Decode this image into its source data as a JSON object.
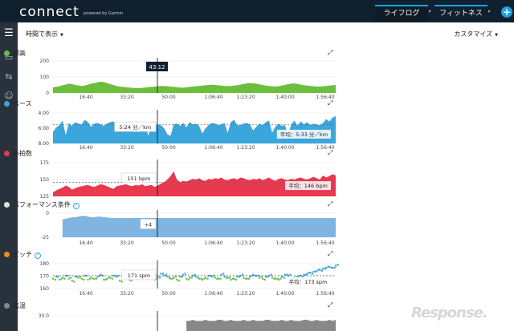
{
  "app": {
    "logo": "connect",
    "powered_by": "powered by Garmin"
  },
  "tabs": [
    {
      "label": "ライフログ",
      "active": true
    },
    {
      "label": "フィットネス",
      "active": false
    }
  ],
  "add_button": "+",
  "toolbar": {
    "view_toggle": "時間で表示",
    "customize": "カスタマイズ"
  },
  "charts": [
    {
      "name": "標高",
      "color": "#6cbf3c",
      "help": false,
      "yticks": [
        "200",
        "100",
        "0"
      ],
      "xticks": [
        "16:40",
        "33:20",
        "50:00",
        "1:06:40",
        "1:23:20",
        "1:40:00",
        "1:56:40"
      ],
      "tooltip": "43:12",
      "avg": ""
    },
    {
      "name": "ペース",
      "color": "#3aa6dc",
      "help": false,
      "yticks": [
        "4:00",
        "6:00",
        "8:00"
      ],
      "xticks": [
        "16:40",
        "33:20",
        "50:00",
        "1:06:40",
        "1:23:20",
        "1:40:00",
        "1:56:40"
      ],
      "tooltip": "5:24 分／km",
      "avg": "平均：5:33 分／km"
    },
    {
      "name": "心拍数",
      "color": "#e8394f",
      "help": false,
      "yticks": [
        "175",
        "150",
        "125"
      ],
      "xticks": [],
      "tooltip": "151 bpm",
      "avg": "平均：146 bpm"
    },
    {
      "name": "パフォーマンス条件",
      "color": "#e0e0e0",
      "help": true,
      "yticks": [
        "0",
        "-25"
      ],
      "xticks": [
        "16:40",
        "33:20",
        "50:00",
        "1:06:40",
        "1:23:20",
        "1:40:00",
        "1:56:40"
      ],
      "tooltip": "+4",
      "avg": ""
    },
    {
      "name": "ピッチ",
      "color": "#f08a24",
      "help": true,
      "yticks": [
        "180",
        "170",
        "160"
      ],
      "xticks": [
        "16:40",
        "33:20",
        "50:00",
        "1:06:40",
        "1:23:20",
        "1:40:00",
        "1:56:40"
      ],
      "tooltip": "171 spm",
      "avg": "平均：173 spm"
    },
    {
      "name": "気温",
      "color": "#888888",
      "help": false,
      "yticks": [
        "30.0"
      ],
      "xticks": [],
      "tooltip": "",
      "avg": ""
    }
  ],
  "chart_data": [
    {
      "type": "area",
      "title": "標高",
      "ylim": [
        0,
        200
      ],
      "values": [
        35,
        38,
        42,
        48,
        52,
        58,
        55,
        50,
        47,
        44,
        46,
        52,
        58,
        62,
        66,
        70,
        68,
        62,
        55,
        50,
        44,
        40,
        38,
        36,
        34,
        32,
        30,
        30,
        32,
        34,
        36,
        38,
        40,
        42,
        44,
        43,
        42,
        40,
        38,
        36,
        34,
        33,
        35,
        38,
        40,
        42,
        44,
        46,
        48,
        50,
        52,
        50,
        48,
        46,
        44,
        43,
        44,
        46,
        48,
        52,
        56,
        60,
        62,
        60,
        58,
        54,
        50,
        46,
        44,
        42,
        40,
        42,
        46,
        50,
        55,
        58,
        60,
        56,
        52,
        48,
        46,
        44,
        42,
        40,
        40,
        42,
        44,
        46,
        48,
        50
      ]
    },
    {
      "type": "area",
      "title": "ペース",
      "ylim": [
        4.0,
        8.0
      ],
      "avg": 5.55,
      "values": [
        6.5,
        5.9,
        5.6,
        5.0,
        6.9,
        5.3,
        5.7,
        5.2,
        5.4,
        5.5,
        4.9,
        5.2,
        5.8,
        5.4,
        5.3,
        5.5,
        5.7,
        5.4,
        5.2,
        5.1,
        5.6,
        5.3,
        5.5,
        6.0,
        5.4,
        5.3,
        5.6,
        5.3,
        5.2,
        5.5,
        7.0,
        5.4,
        5.8,
        5.5,
        5.6,
        6.0,
        6.8,
        7.0,
        5.5,
        5.4,
        5.7,
        5.3,
        5.9,
        5.2,
        5.5,
        5.4,
        5.7,
        6.7,
        6.0,
        5.6,
        5.3,
        5.4,
        5.6,
        5.5,
        5.3,
        6.6,
        5.2,
        4.9,
        5.6,
        5.6,
        5.4,
        5.3,
        5.5,
        6.3,
        5.8,
        5.4,
        5.6,
        5.2,
        5.0,
        6.6,
        5.8,
        5.4,
        5.7,
        5.6,
        6.8,
        5.5,
        5.0,
        5.7,
        5.1,
        5.5,
        5.2,
        5.6,
        5.4,
        5.5,
        5.6,
        5.3,
        4.8,
        5.1,
        4.6,
        4.4
      ]
    },
    {
      "type": "area",
      "title": "心拍数",
      "ylim": [
        125,
        175
      ],
      "avg": 146,
      "values": [
        131,
        134,
        136,
        138,
        141,
        139,
        135,
        137,
        139,
        140,
        141,
        142,
        140,
        139,
        141,
        143,
        142,
        140,
        138,
        136,
        140,
        141,
        142,
        143,
        141,
        140,
        142,
        141,
        143,
        140,
        141,
        142,
        139,
        141,
        144,
        146,
        150,
        155,
        162,
        150,
        146,
        148,
        147,
        149,
        151,
        150,
        152,
        149,
        148,
        151,
        150,
        152,
        151,
        153,
        150,
        149,
        151,
        152,
        150,
        153,
        152,
        150,
        149,
        151,
        150,
        152,
        149,
        151,
        153,
        150,
        148,
        151,
        152,
        150,
        149,
        151,
        150,
        152,
        153,
        151,
        150,
        152,
        154,
        152,
        150,
        156,
        153,
        155,
        158,
        156
      ]
    },
    {
      "type": "area",
      "title": "パフォーマンス条件",
      "ylim": [
        -25,
        10
      ],
      "values": [
        null,
        null,
        null,
        1,
        2,
        3,
        4,
        4,
        5,
        6,
        6,
        5,
        4,
        4,
        5,
        5,
        4,
        4,
        3,
        3,
        3,
        3,
        3,
        3,
        3,
        3,
        3,
        3,
        3,
        3,
        3,
        3,
        3,
        3,
        3,
        3,
        3,
        3,
        3,
        3,
        3,
        3,
        3,
        3,
        3,
        3,
        3,
        3,
        3,
        3,
        3,
        3,
        3,
        3,
        3,
        3,
        3,
        3,
        3,
        3,
        3,
        3,
        3,
        3,
        3,
        3,
        3,
        3,
        3,
        3,
        3,
        3,
        3,
        3,
        3,
        3,
        3,
        3,
        3,
        3,
        3,
        3,
        3,
        3,
        3,
        3,
        3,
        3,
        3,
        3
      ]
    },
    {
      "type": "scatter",
      "title": "ピッチ",
      "ylim": [
        160,
        185
      ],
      "avg": 173,
      "values": [
        170,
        172,
        169,
        171,
        173,
        170,
        168,
        172,
        171,
        170,
        173,
        169,
        171,
        170,
        172,
        174,
        169,
        170,
        171,
        173,
        172,
        168,
        170,
        171,
        169,
        172,
        170,
        171,
        173,
        174,
        171,
        170,
        169,
        172,
        175,
        173,
        172,
        170,
        171,
        169,
        172,
        174,
        170,
        171,
        173,
        172,
        170,
        169,
        171,
        173,
        172,
        171,
        170,
        174,
        172,
        171,
        169,
        170,
        172,
        173,
        171,
        170,
        172,
        174,
        173,
        171,
        170,
        172,
        173,
        171,
        170,
        169,
        172,
        174,
        173,
        170,
        171,
        172,
        173,
        174,
        175,
        176,
        177,
        178,
        179,
        180,
        181,
        182,
        181,
        183
      ]
    },
    {
      "type": "area",
      "title": "気温",
      "ylim": [
        20,
        35
      ],
      "values": [
        null,
        null,
        null,
        null,
        null,
        null,
        null,
        null,
        null,
        null,
        null,
        null,
        null,
        null,
        null,
        null,
        null,
        null,
        null,
        null,
        null,
        null,
        null,
        null,
        null,
        null,
        null,
        null,
        null,
        null,
        null,
        null,
        null,
        null,
        null,
        null,
        null,
        null,
        null,
        null,
        null,
        null,
        29,
        29,
        30,
        29,
        29,
        29,
        30,
        29,
        29,
        29,
        30,
        30,
        29,
        29,
        30,
        29,
        29,
        29,
        30,
        29,
        29,
        30,
        29,
        29,
        29,
        30,
        30,
        29,
        29,
        29,
        30,
        29,
        29,
        30,
        29,
        29,
        29,
        30,
        30,
        29,
        29,
        30,
        29,
        29,
        29,
        30,
        29,
        30
      ]
    }
  ]
}
